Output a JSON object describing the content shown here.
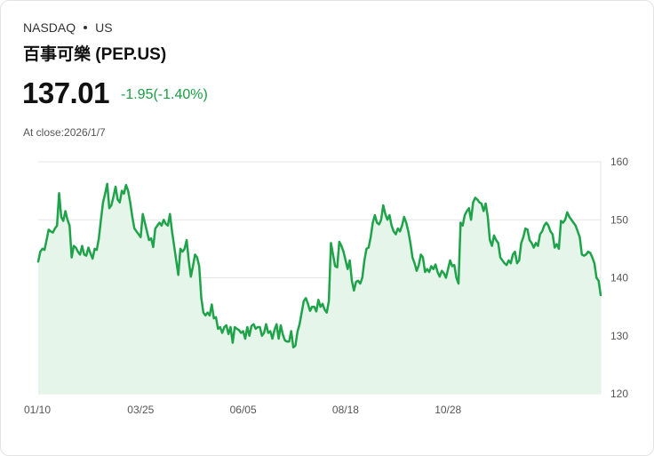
{
  "header": {
    "exchange": "NASDAQ",
    "market": "US",
    "title": "百事可樂 (PEP.US)",
    "price": "137.01",
    "change": "-1.95(-1.40%)",
    "close_label": "At close:2026/1/7"
  },
  "colors": {
    "line": "#1fa34a",
    "area": "#e6f5ea",
    "grid": "#e6e6e6",
    "change": "#1a9e43"
  },
  "chart_data": {
    "type": "area",
    "title": "百事可樂 (PEP.US)",
    "xlabel": "",
    "ylabel": "",
    "ylim": [
      120,
      160
    ],
    "y_ticks": [
      120,
      130,
      140,
      150,
      160
    ],
    "x_tick_labels": [
      "01/10",
      "03/25",
      "06/05",
      "08/18",
      "10/28"
    ],
    "x_tick_indices": [
      0,
      49,
      98,
      147,
      196
    ],
    "grid": true,
    "y_axis_position": "right",
    "values": [
      142.8,
      144.5,
      145.0,
      144.8,
      146.5,
      148.3,
      148.0,
      147.8,
      148.5,
      149.0,
      154.6,
      150.5,
      149.8,
      151.5,
      150.0,
      149.0,
      143.5,
      145.5,
      145.2,
      144.5,
      144.0,
      145.5,
      144.0,
      143.8,
      145.2,
      144.2,
      143.3,
      145.0,
      144.8,
      146.8,
      150.0,
      153.0,
      154.5,
      156.2,
      152.0,
      152.5,
      154.0,
      155.7,
      153.5,
      153.0,
      155.0,
      154.5,
      156.0,
      155.0,
      153.0,
      150.5,
      148.5,
      148.0,
      147.5,
      147.0,
      151.0,
      149.5,
      148.0,
      146.5,
      146.8,
      145.3,
      148.5,
      149.0,
      149.5,
      149.0,
      150.0,
      149.3,
      149.0,
      151.0,
      148.0,
      145.5,
      143.0,
      140.5,
      145.0,
      144.5,
      145.0,
      146.5,
      143.0,
      140.2,
      142.0,
      144.0,
      143.5,
      142.0,
      136.5,
      134.0,
      133.5,
      134.0,
      133.5,
      135.4,
      133.0,
      133.2,
      131.2,
      131.5,
      130.5,
      131.5,
      131.8,
      130.3,
      131.5,
      128.8,
      131.5,
      131.2,
      131.0,
      130.5,
      130.8,
      129.5,
      131.5,
      130.0,
      131.7,
      132.0,
      131.2,
      131.5,
      131.5,
      130.0,
      130.5,
      132.0,
      130.5,
      130.8,
      129.5,
      131.0,
      132.0,
      129.5,
      131.8,
      130.2,
      129.2,
      129.0,
      129.0,
      130.8,
      128.0,
      128.3,
      130.7,
      132.0,
      134.0,
      136.0,
      136.5,
      135.5,
      134.3,
      135.0,
      135.0,
      134.2,
      136.2,
      135.0,
      135.5,
      134.5,
      134.0,
      136.0,
      146.0,
      144.0,
      142.0,
      141.8,
      146.2,
      145.5,
      144.5,
      143.0,
      141.5,
      143.0,
      139.5,
      137.8,
      139.3,
      139.5,
      139.0,
      140.0,
      143.0,
      145.0,
      145.2,
      147.0,
      149.5,
      150.8,
      149.5,
      149.2,
      150.0,
      152.5,
      151.0,
      150.0,
      150.8,
      149.0,
      148.0,
      147.5,
      148.5,
      148.0,
      149.0,
      150.5,
      149.5,
      148.0,
      146.0,
      143.5,
      142.5,
      141.2,
      142.2,
      144.0,
      143.5,
      141.0,
      141.5,
      141.0,
      142.0,
      141.5,
      142.3,
      141.0,
      140.2,
      141.2,
      140.8,
      140.0,
      141.5,
      143.0,
      142.0,
      142.2,
      140.0,
      139.0,
      149.5,
      149.0,
      150.8,
      151.5,
      152.0,
      150.0,
      153.0,
      153.8,
      153.5,
      153.0,
      152.8,
      151.5,
      152.8,
      150.5,
      146.5,
      145.5,
      147.3,
      146.5,
      146.0,
      143.5,
      143.0,
      142.5,
      142.2,
      143.0,
      142.5,
      144.0,
      144.5,
      142.5,
      143.0,
      146.0,
      147.0,
      148.5,
      148.3,
      146.5,
      146.0,
      145.2,
      146.0,
      145.5,
      147.5,
      148.0,
      149.0,
      149.5,
      149.0,
      148.0,
      147.5,
      145.2,
      145.8,
      145.0,
      149.8,
      149.5,
      150.0,
      151.3,
      150.5,
      150.0,
      149.5,
      149.0,
      148.0,
      147.0,
      144.0,
      143.8,
      144.0,
      144.5,
      144.3,
      143.5,
      142.5,
      140.0,
      139.5,
      137.0
    ]
  }
}
